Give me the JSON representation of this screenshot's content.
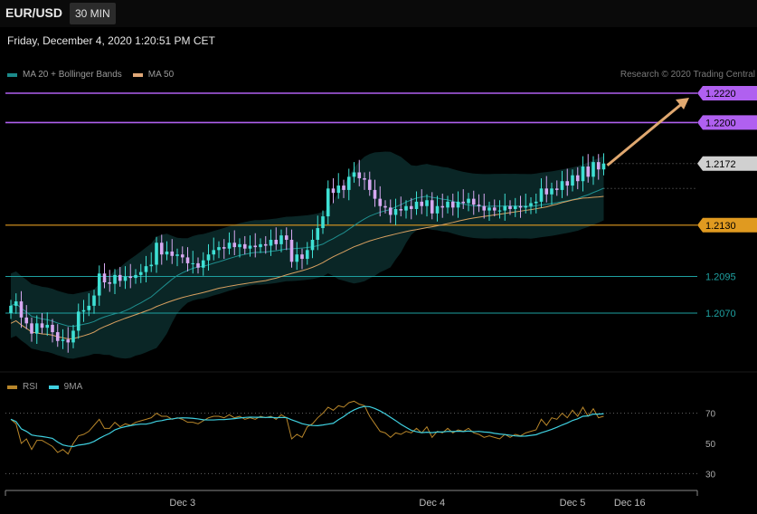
{
  "header": {
    "symbol": "EUR/USD",
    "timeframe": "30 MIN"
  },
  "datetime": "Friday, December 4, 2020 1:20:51 PM CET",
  "legend_main": [
    {
      "label": "MA 20 + Bollinger Bands",
      "color": "#1b8a8a"
    },
    {
      "label": "MA 50",
      "color": "#e0a878"
    }
  ],
  "legend_rsi": [
    {
      "label": "RSI",
      "color": "#b8862a"
    },
    {
      "label": "9MA",
      "color": "#3fd0e0"
    }
  ],
  "credit": "Research © 2020 Trading Central",
  "colors": {
    "background": "#000000",
    "up_candle": "#3ee0d4",
    "down_candle": "#d6a8f0",
    "bands_fill": "#0a2626",
    "ma20": "#1f8f8f",
    "ma50": "#d8a060",
    "resistance": "#b060f0",
    "support_orange": "#e09a20",
    "support_teal": "#1ea0a0",
    "arrow": "#e0a870",
    "rsi": "#b8862a",
    "rsi_ma": "#3fd0e0"
  },
  "chart_data": {
    "type": "candlestick",
    "y_range": [
      1.2045,
      1.2232
    ],
    "levels": [
      {
        "value": 1.222,
        "label": "1.2220",
        "style": "resistance"
      },
      {
        "value": 1.22,
        "label": "1.2200",
        "style": "resistance"
      },
      {
        "value": 1.2172,
        "label": "1.2172",
        "style": "last_price"
      },
      {
        "value": 1.213,
        "label": "1.2130",
        "style": "support_orange"
      },
      {
        "value": 1.2095,
        "label": "1.2095",
        "style": "support_teal"
      },
      {
        "value": 1.207,
        "label": "1.2070",
        "style": "support_teal"
      }
    ],
    "close": [
      1.2075,
      1.2078,
      1.2067,
      1.2063,
      1.2056,
      1.2063,
      1.206,
      1.2062,
      1.2057,
      1.2051,
      1.2052,
      1.205,
      1.2058,
      1.2071,
      1.2072,
      1.2075,
      1.2082,
      1.2097,
      1.2091,
      1.209,
      1.2096,
      1.2092,
      1.2095,
      1.2094,
      1.2096,
      1.2098,
      1.2102,
      1.2103,
      1.2118,
      1.211,
      1.2112,
      1.2109,
      1.211,
      1.2108,
      1.2104,
      1.2104,
      1.2101,
      1.2106,
      1.211,
      1.2113,
      1.2115,
      1.2114,
      1.2118,
      1.2115,
      1.2117,
      1.2114,
      1.2116,
      1.2115,
      1.2117,
      1.2116,
      1.212,
      1.2117,
      1.2123,
      1.212,
      1.2105,
      1.211,
      1.2107,
      1.2113,
      1.212,
      1.2128,
      1.2136,
      1.2155,
      1.2152,
      1.2157,
      1.2154,
      1.2163,
      1.2166,
      1.2162,
      1.2161,
      1.2154,
      1.2148,
      1.2143,
      1.2142,
      1.2137,
      1.2141,
      1.214,
      1.2143,
      1.2141,
      1.2146,
      1.2143,
      1.2147,
      1.2138,
      1.2143,
      1.2142,
      1.2146,
      1.2142,
      1.2146,
      1.2145,
      1.2148,
      1.2144,
      1.2143,
      1.214,
      1.2142,
      1.214,
      1.214,
      1.2143,
      1.2141,
      1.2143,
      1.2142,
      1.2143,
      1.2145,
      1.2146,
      1.2155,
      1.2151,
      1.2155,
      1.2154,
      1.216,
      1.2157,
      1.2164,
      1.216,
      1.217,
      1.2163,
      1.2173,
      1.2168,
      1.2172
    ],
    "rsi": {
      "y_range": [
        20,
        80
      ],
      "ticks": [
        70,
        50,
        30
      ],
      "dotted_levels": [
        70,
        30
      ],
      "values": [
        66,
        63,
        50,
        53,
        46,
        52,
        52,
        50,
        48,
        44,
        46,
        43,
        50,
        55,
        56,
        58,
        62,
        66,
        60,
        60,
        64,
        61,
        63,
        62,
        64,
        65,
        66,
        67,
        70,
        68,
        68,
        66,
        67,
        66,
        64,
        64,
        63,
        65,
        67,
        68,
        68,
        67,
        69,
        67,
        68,
        66,
        67,
        66,
        68,
        67,
        68,
        66,
        69,
        67,
        53,
        56,
        54,
        61,
        63,
        67,
        70,
        74,
        72,
        75,
        74,
        77,
        78,
        76,
        75,
        68,
        63,
        58,
        57,
        54,
        57,
        56,
        58,
        57,
        60,
        57,
        61,
        54,
        58,
        57,
        60,
        57,
        59,
        58,
        60,
        57,
        56,
        54,
        55,
        54,
        53,
        56,
        54,
        56,
        55,
        57,
        58,
        59,
        66,
        62,
        67,
        66,
        70,
        67,
        72,
        68,
        74,
        68,
        73,
        67,
        68
      ]
    },
    "x_ticks": [
      {
        "label": "Dec 3",
        "index": 33
      },
      {
        "label": "Dec 4",
        "index": 81
      },
      {
        "label": "Dec 5",
        "index": 108
      },
      {
        "label": "Dec 16",
        "index": 119
      }
    ]
  }
}
